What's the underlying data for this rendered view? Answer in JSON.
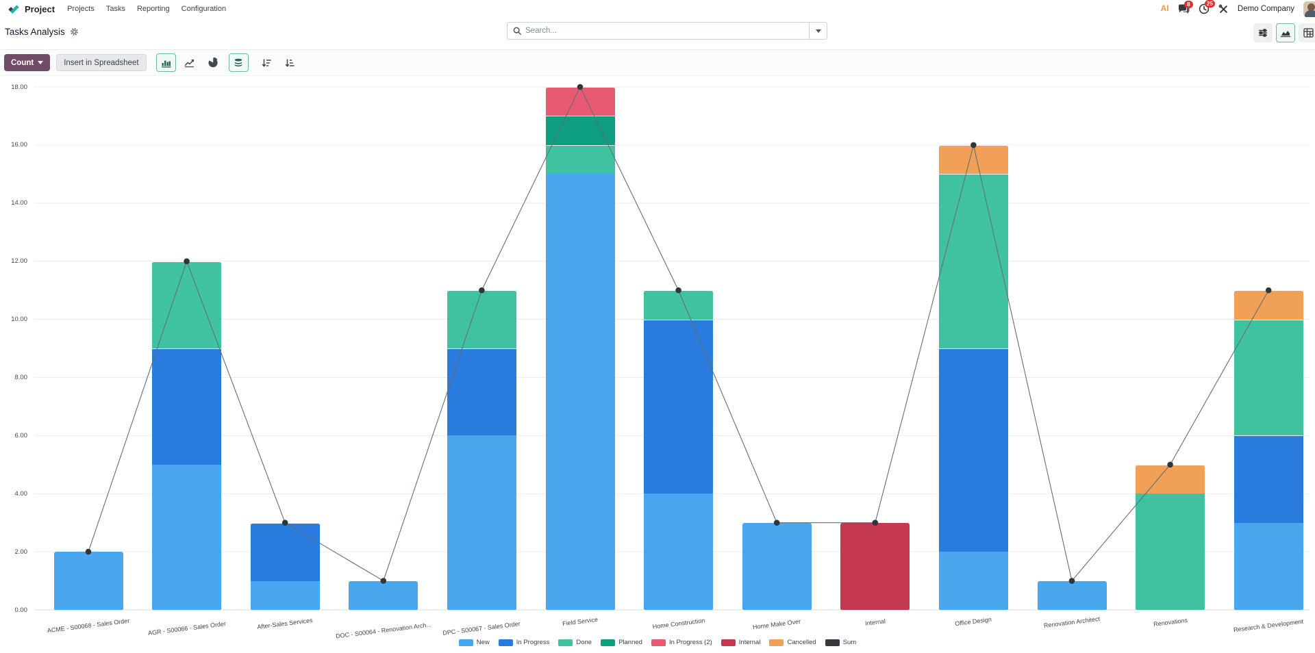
{
  "navbar": {
    "app_name": "Project",
    "menus": [
      {
        "label": "Projects"
      },
      {
        "label": "Tasks"
      },
      {
        "label": "Reporting"
      },
      {
        "label": "Configuration"
      }
    ],
    "systray": {
      "ai_label": "AI",
      "messages_badge": "8",
      "activities_badge": "25",
      "company_name": "Demo Company"
    }
  },
  "breadcrumb": {
    "title": "Tasks Analysis"
  },
  "search": {
    "placeholder": "Search..."
  },
  "control_panel": {
    "measure_button_label": "Count",
    "insert_spreadsheet_label": "Insert in Spreadsheet",
    "active_chart_type": "bar",
    "stacked_enabled": true
  },
  "view_switcher": {
    "active_view": "graph"
  },
  "chart_data": {
    "type": "bar",
    "stacked": true,
    "categories": [
      "ACME - S00068 - Sales Order",
      "AGR - S00066 - Sales Order",
      "After-Sales Services",
      "DOC - S00064 - Renovation Arch...",
      "DPC - S00067 - Sales Order",
      "Field Service",
      "Home Construction",
      "Home Make Over",
      "Internal",
      "Office Design",
      "Renovation Architect",
      "Renovations",
      "Research & Development"
    ],
    "series": [
      {
        "name": "New",
        "color": "#4AA7EE",
        "values": [
          2,
          5,
          1,
          1,
          6,
          15,
          4,
          3,
          0,
          2,
          1,
          0,
          3
        ]
      },
      {
        "name": "In Progress",
        "color": "#2A7BDE",
        "values": [
          0,
          4,
          2,
          0,
          3,
          0,
          6,
          0,
          0,
          7,
          0,
          0,
          3
        ]
      },
      {
        "name": "Done",
        "color": "#40C2A0",
        "values": [
          0,
          3,
          0,
          0,
          2,
          1,
          1,
          0,
          0,
          6,
          0,
          4,
          4
        ]
      },
      {
        "name": "Planned",
        "color": "#0E9F80",
        "values": [
          0,
          0,
          0,
          0,
          0,
          1,
          0,
          0,
          0,
          0,
          0,
          0,
          0
        ]
      },
      {
        "name": "In Progress (2)",
        "color": "#E85A71",
        "values": [
          0,
          0,
          0,
          0,
          0,
          1,
          0,
          0,
          0,
          0,
          0,
          0,
          0
        ]
      },
      {
        "name": "Internal",
        "color": "#C33A50",
        "values": [
          0,
          0,
          0,
          0,
          0,
          0,
          0,
          0,
          3,
          0,
          0,
          0,
          0
        ]
      },
      {
        "name": "Cancelled",
        "color": "#F0A057",
        "values": [
          0,
          0,
          0,
          0,
          0,
          0,
          0,
          0,
          0,
          1,
          0,
          1,
          1
        ]
      }
    ],
    "line_series": {
      "name": "Sum",
      "color": "#343A40",
      "values": [
        2,
        12,
        3,
        1,
        11,
        18,
        11,
        3,
        3,
        16,
        1,
        5,
        11
      ]
    },
    "ylabel": "",
    "ylim": [
      0,
      18
    ],
    "ytick_step": 2,
    "yticks": [
      "0.00",
      "2.00",
      "4.00",
      "6.00",
      "8.00",
      "10.00",
      "12.00",
      "14.00",
      "16.00",
      "18.00"
    ],
    "grid": true,
    "legend_position": "bottom"
  }
}
